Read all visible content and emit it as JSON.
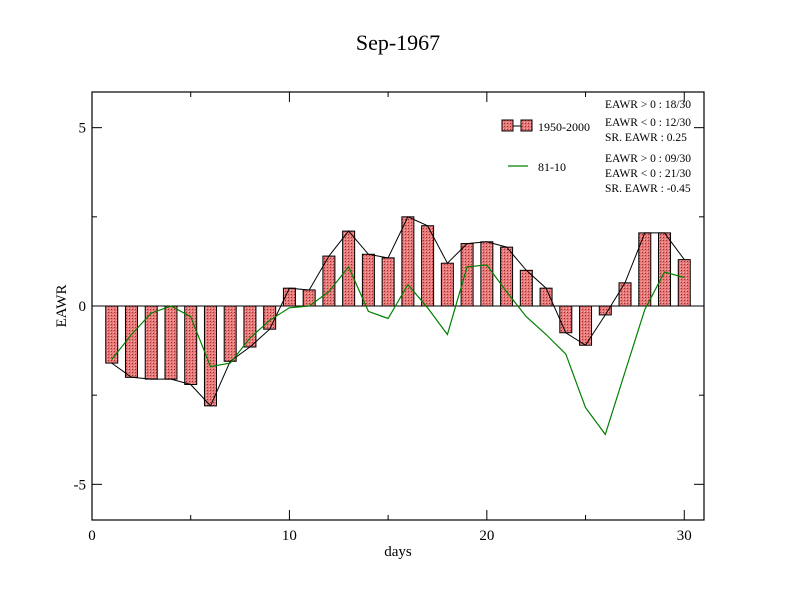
{
  "chart_data": {
    "type": "bar",
    "title": "Sep-1967",
    "xlabel": "days",
    "ylabel": "EAWR",
    "xlim": [
      0,
      31
    ],
    "ylim": [
      -6,
      6
    ],
    "x_ticks": [
      0,
      10,
      20,
      30
    ],
    "y_ticks": [
      -5,
      0,
      5
    ],
    "x_tick_labels": [
      "0",
      "10",
      "20",
      "30"
    ],
    "y_tick_labels": [
      "-5",
      "0",
      "5"
    ],
    "x": [
      1,
      2,
      3,
      4,
      5,
      6,
      7,
      8,
      9,
      10,
      11,
      12,
      13,
      14,
      15,
      16,
      17,
      18,
      19,
      20,
      21,
      22,
      23,
      24,
      25,
      26,
      27,
      28,
      29,
      30
    ],
    "series": [
      {
        "name": "1950-2000",
        "style": "bar",
        "color": "#e87878",
        "values": [
          -1.6,
          -2.0,
          -2.05,
          -2.05,
          -2.2,
          -2.8,
          -1.55,
          -1.15,
          -0.65,
          0.5,
          0.45,
          1.4,
          2.1,
          1.45,
          1.35,
          2.5,
          2.25,
          1.2,
          1.75,
          1.8,
          1.65,
          1.0,
          0.5,
          -0.75,
          -1.1,
          -0.25,
          0.65,
          2.05,
          2.05,
          1.3
        ]
      },
      {
        "name": "81-10",
        "style": "line",
        "color": "#008000",
        "values": [
          -1.5,
          -0.8,
          -0.2,
          0.0,
          -0.3,
          -1.7,
          -1.6,
          -0.9,
          -0.4,
          -0.05,
          0.0,
          0.4,
          1.1,
          -0.15,
          -0.35,
          0.6,
          -0.05,
          -0.8,
          1.1,
          1.15,
          0.4,
          -0.3,
          -0.8,
          -1.35,
          -2.85,
          -3.6,
          -1.85,
          -0.1,
          0.95,
          0.8
        ]
      }
    ],
    "legend": {
      "placement": "top-right",
      "entries": [
        "1950-2000",
        "81-10"
      ]
    },
    "stats": [
      {
        "series": "1950-2000",
        "lines": [
          "EAWR > 0 : 18/30",
          "EAWR < 0 : 12/30",
          "SR. EAWR :  0.25"
        ]
      },
      {
        "series": "81-10",
        "lines": [
          "EAWR > 0 : 09/30",
          "EAWR < 0 : 21/30",
          "SR. EAWR : -0.45"
        ]
      }
    ]
  }
}
